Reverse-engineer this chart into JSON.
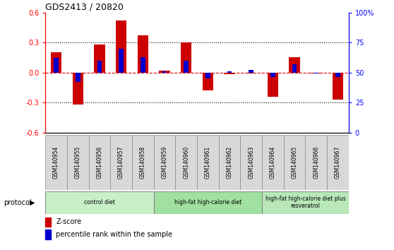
{
  "title": "GDS2413 / 20820",
  "samples": [
    "GSM140954",
    "GSM140955",
    "GSM140956",
    "GSM140957",
    "GSM140958",
    "GSM140959",
    "GSM140960",
    "GSM140961",
    "GSM140962",
    "GSM140963",
    "GSM140964",
    "GSM140965",
    "GSM140966",
    "GSM140967"
  ],
  "zscore": [
    0.2,
    -0.32,
    0.28,
    0.52,
    0.37,
    0.02,
    0.3,
    -0.18,
    -0.02,
    -0.01,
    -0.24,
    0.15,
    -0.01,
    -0.27
  ],
  "pct_rank_pct": [
    62,
    42,
    60,
    70,
    63,
    51,
    60,
    45,
    51,
    52,
    46,
    57,
    49,
    46
  ],
  "groups": [
    {
      "label": "control diet",
      "start": 0,
      "end": 5,
      "color": "#c8f0c8"
    },
    {
      "label": "high-fat high-calorie diet",
      "start": 5,
      "end": 10,
      "color": "#a0e0a0"
    },
    {
      "label": "high-fat high-calorie diet plus\nresveratrol",
      "start": 10,
      "end": 14,
      "color": "#b8e8b8"
    }
  ],
  "ylim_left": [
    -0.6,
    0.6
  ],
  "yticks_left": [
    -0.6,
    -0.3,
    0.0,
    0.3,
    0.6
  ],
  "yticks_right_pct": [
    0,
    25,
    50,
    75,
    100
  ],
  "bar_color_red": "#cc0000",
  "bar_color_blue": "#0000cc",
  "bar_width": 0.5,
  "pct_bar_width": 0.22,
  "legend_zscore": "Z-score",
  "legend_pct": "percentile rank within the sample",
  "protocol_label": "protocol",
  "sample_box_color": "#d8d8d8",
  "hline0_color": "#dd0000",
  "hline_dot_color": "black"
}
